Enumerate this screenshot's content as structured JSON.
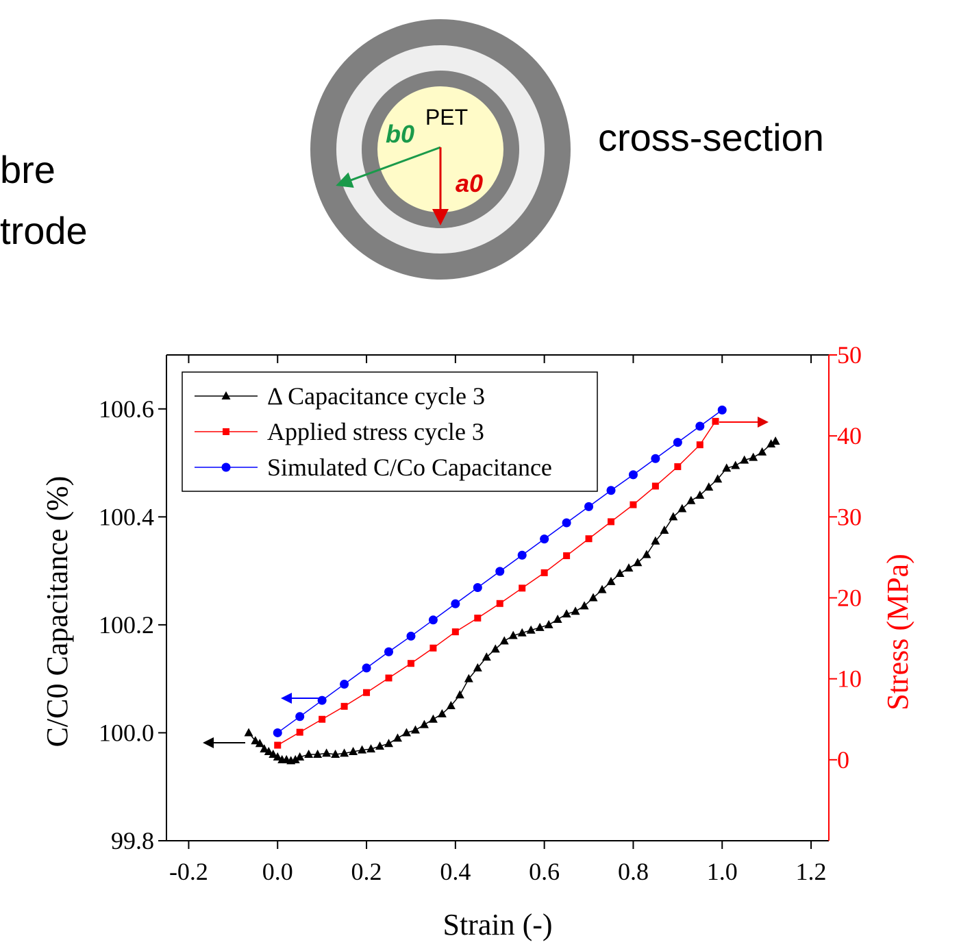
{
  "diagram": {
    "left_text": [
      "bre",
      "trode"
    ],
    "core_label": "PET",
    "b_label": "b0",
    "a_label": "a0",
    "caption": "cross-section"
  },
  "chart_data": {
    "type": "line",
    "x_label": "Strain (-)",
    "y_label": "C/C0 Capacitance (%)",
    "y2_label": "Stress (MPa)",
    "xlim": [
      -0.25,
      1.24
    ],
    "xticks": [
      -0.2,
      {
        "value": 0,
        "label": "0.0"
      },
      0.2,
      0.4,
      0.6,
      0.8,
      {
        "value": 1,
        "label": "1.0"
      },
      1.2
    ],
    "ylim": [
      99.8,
      100.7
    ],
    "yticks": [
      99.8,
      {
        "value": 100,
        "label": "100.0"
      },
      100.2,
      100.4,
      100.6
    ],
    "y2lim": [
      -10,
      50
    ],
    "y2ticks": [
      0,
      10,
      20,
      30,
      40,
      50
    ],
    "y2color": "#ff0000",
    "legend": "upper left",
    "series": [
      {
        "name": "Δ Capacitance cycle 3",
        "color": "#000000",
        "marker": "triangle",
        "x": [
          -0.065,
          -0.05,
          -0.04,
          -0.03,
          -0.02,
          -0.01,
          0.0,
          0.01,
          0.02,
          0.03,
          0.04,
          0.05,
          0.07,
          0.09,
          0.11,
          0.13,
          0.15,
          0.17,
          0.19,
          0.21,
          0.23,
          0.25,
          0.27,
          0.29,
          0.31,
          0.33,
          0.35,
          0.37,
          0.39,
          0.41,
          0.43,
          0.45,
          0.47,
          0.49,
          0.51,
          0.53,
          0.55,
          0.57,
          0.59,
          0.61,
          0.63,
          0.65,
          0.67,
          0.69,
          0.71,
          0.73,
          0.75,
          0.77,
          0.79,
          0.81,
          0.83,
          0.85,
          0.87,
          0.89,
          0.91,
          0.93,
          0.95,
          0.97,
          0.99,
          1.01,
          1.03,
          1.05,
          1.07,
          1.09,
          1.11,
          1.12
        ],
        "values": [
          100.0,
          99.985,
          99.98,
          99.97,
          99.965,
          99.96,
          99.955,
          99.95,
          99.95,
          99.948,
          99.95,
          99.955,
          99.96,
          99.96,
          99.962,
          99.96,
          99.962,
          99.965,
          99.968,
          99.97,
          99.975,
          99.98,
          99.99,
          100.0,
          100.005,
          100.015,
          100.025,
          100.035,
          100.05,
          100.07,
          100.1,
          100.12,
          100.14,
          100.155,
          100.17,
          100.18,
          100.185,
          100.19,
          100.195,
          100.2,
          100.21,
          100.22,
          100.225,
          100.235,
          100.25,
          100.265,
          100.28,
          100.295,
          100.305,
          100.315,
          100.33,
          100.355,
          100.375,
          100.4,
          100.415,
          100.43,
          100.44,
          100.455,
          100.47,
          100.49,
          100.495,
          100.505,
          100.51,
          100.52,
          100.535,
          100.54
        ]
      },
      {
        "name": "Applied stress cycle 3",
        "color": "#ff0000",
        "marker": "square",
        "axis": "y2",
        "x": [
          0,
          0.05,
          0.1,
          0.15,
          0.2,
          0.25,
          0.3,
          0.35,
          0.4,
          0.45,
          0.5,
          0.55,
          0.6,
          0.65,
          0.7,
          0.75,
          0.8,
          0.85,
          0.9,
          0.95,
          0.985
        ],
        "values": [
          1.8,
          3.4,
          5.0,
          6.6,
          8.3,
          10.1,
          11.9,
          13.8,
          15.8,
          17.5,
          19.3,
          21.2,
          23.1,
          25.2,
          27.3,
          29.4,
          31.5,
          33.8,
          36.2,
          38.9,
          41.8
        ]
      },
      {
        "name": "Simulated C/Co Capacitance",
        "color": "#0000ff",
        "marker": "circle",
        "x": [
          0,
          0.05,
          0.1,
          0.15,
          0.2,
          0.25,
          0.3,
          0.35,
          0.4,
          0.45,
          0.5,
          0.55,
          0.6,
          0.65,
          0.7,
          0.75,
          0.8,
          0.85,
          0.9,
          0.95,
          1.0
        ],
        "values": [
          100.0,
          100.03,
          100.06,
          100.09,
          100.12,
          100.15,
          100.179,
          100.209,
          100.239,
          100.269,
          100.299,
          100.329,
          100.359,
          100.389,
          100.419,
          100.449,
          100.478,
          100.508,
          100.538,
          100.568,
          100.598
        ]
      }
    ]
  }
}
